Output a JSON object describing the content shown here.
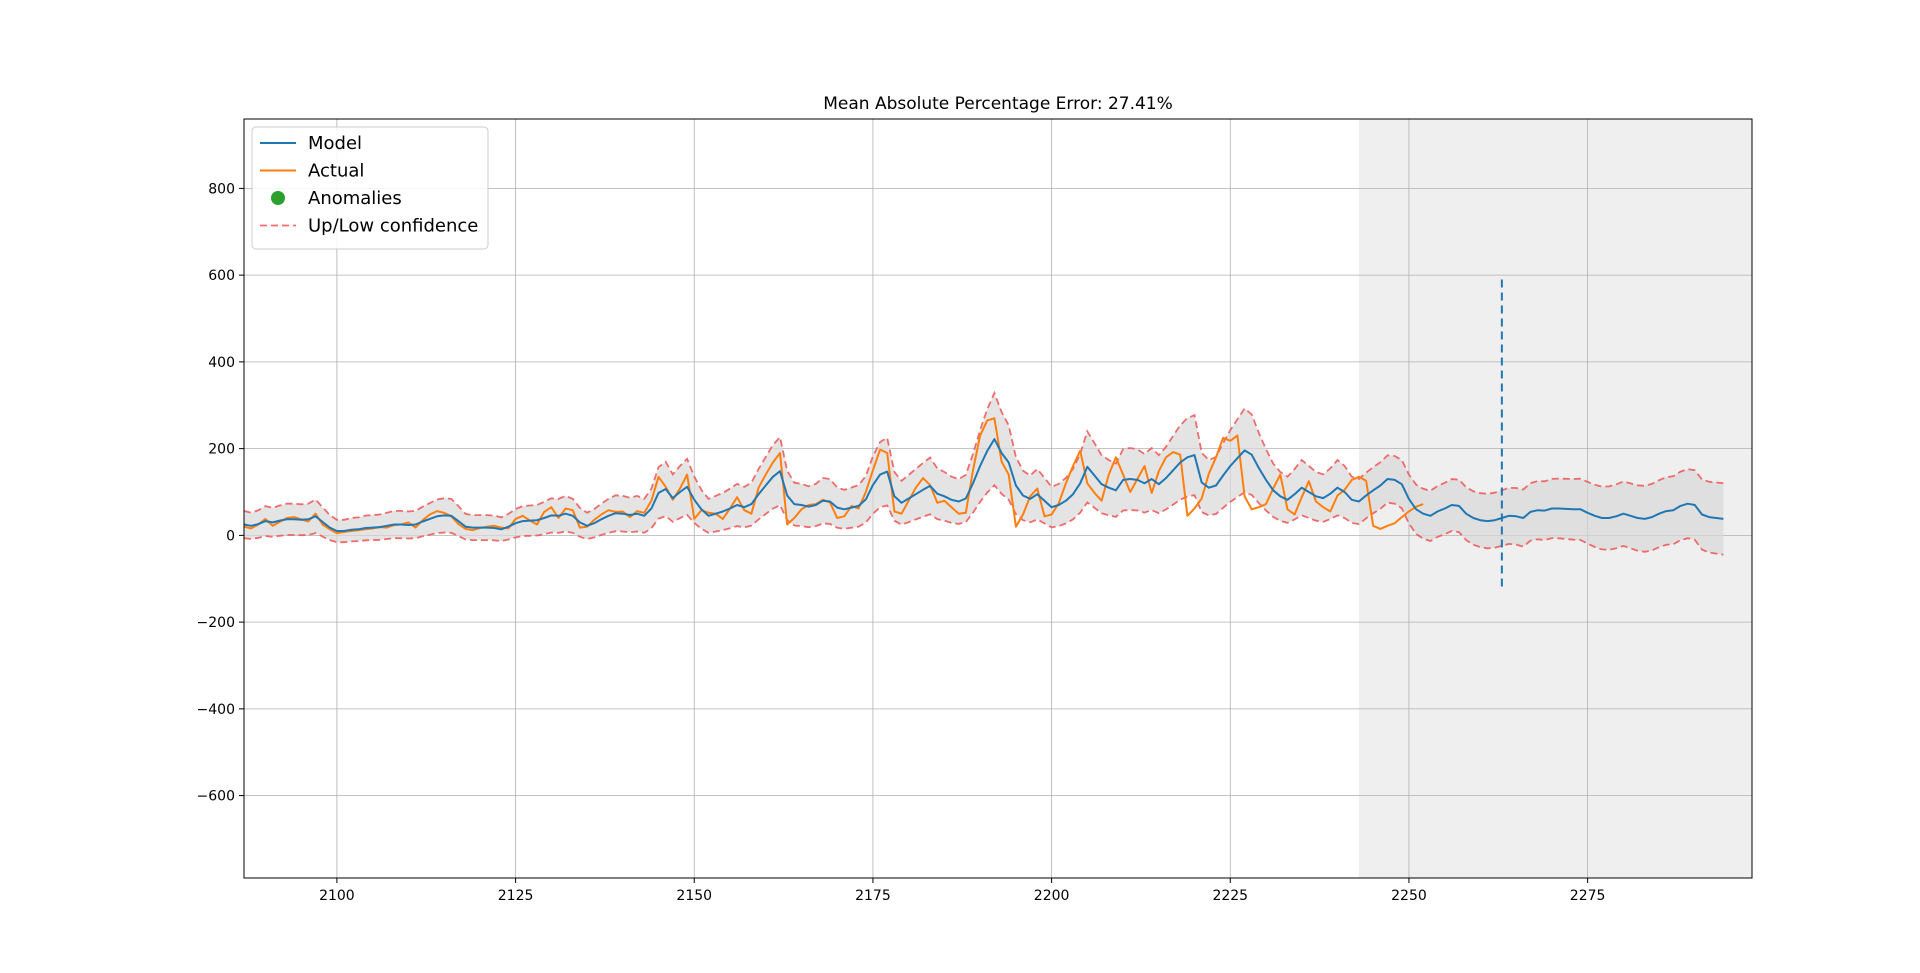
{
  "chart_data": {
    "type": "line",
    "title": "Mean Absolute Percentage Error: 27.41%",
    "xlim": [
      2087,
      2298
    ],
    "ylim": [
      -790,
      960
    ],
    "x_ticks": [
      2100,
      2125,
      2150,
      2175,
      2200,
      2225,
      2250,
      2275
    ],
    "y_ticks": [
      -600,
      -400,
      -200,
      0,
      200,
      400,
      600,
      800
    ],
    "grid": true,
    "legend_position": "top-left",
    "forecast_region": {
      "x_start": 2243,
      "x_end": 2298,
      "color": "#e8e8e8"
    },
    "vline": {
      "x": 2263,
      "y_min": -120,
      "y_max": 590,
      "color": "#1f77b4"
    },
    "x_start": 2087,
    "model": [
      25,
      22,
      26,
      33,
      30,
      34,
      37,
      37,
      36,
      37,
      44,
      31,
      18,
      10,
      10,
      13,
      14,
      17,
      18,
      19,
      22,
      25,
      25,
      24,
      25,
      32,
      38,
      44,
      46,
      45,
      33,
      20,
      18,
      18,
      18,
      17,
      14,
      20,
      28,
      33,
      34,
      35,
      40,
      46,
      45,
      50,
      45,
      30,
      22,
      28,
      37,
      45,
      51,
      50,
      47,
      50,
      45,
      62,
      98,
      107,
      86,
      100,
      112,
      82,
      60,
      45,
      50,
      55,
      62,
      70,
      65,
      72,
      95,
      115,
      135,
      148,
      92,
      72,
      70,
      66,
      70,
      80,
      78,
      64,
      60,
      64,
      68,
      83,
      116,
      140,
      147,
      90,
      75,
      85,
      95,
      105,
      114,
      96,
      90,
      82,
      78,
      85,
      120,
      160,
      195,
      222,
      190,
      168,
      115,
      92,
      84,
      95,
      80,
      65,
      70,
      80,
      95,
      120,
      158,
      138,
      118,
      110,
      104,
      128,
      130,
      128,
      120,
      130,
      118,
      132,
      150,
      168,
      180,
      185,
      122,
      110,
      115,
      138,
      160,
      178,
      196,
      186,
      155,
      128,
      104,
      90,
      82,
      95,
      110,
      100,
      90,
      86,
      96,
      110,
      100,
      82,
      78,
      92,
      104,
      115,
      130,
      128,
      118,
      84,
      60,
      50,
      45,
      55,
      62,
      70,
      68,
      50,
      40,
      35,
      33,
      35,
      40,
      45,
      44,
      40,
      54,
      58,
      57,
      62,
      62,
      61,
      60,
      60,
      52,
      45,
      40,
      40,
      44,
      50,
      45,
      40,
      38,
      42,
      50,
      56,
      58,
      68,
      73,
      70,
      48,
      42,
      40,
      38
    ],
    "actual": [
      20,
      16,
      25,
      38,
      22,
      31,
      40,
      42,
      37,
      32,
      50,
      25,
      14,
      5,
      8,
      10,
      12,
      14,
      16,
      19,
      18,
      24,
      25,
      30,
      18,
      35,
      48,
      56,
      52,
      44,
      26,
      15,
      12,
      17,
      20,
      22,
      18,
      16,
      38,
      45,
      34,
      25,
      54,
      65,
      40,
      62,
      58,
      18,
      20,
      36,
      48,
      58,
      54,
      55,
      42,
      56,
      52,
      80,
      135,
      112,
      82,
      108,
      140,
      38,
      58,
      52,
      50,
      38,
      62,
      88,
      58,
      50,
      110,
      140,
      168,
      190,
      25,
      40,
      60,
      70,
      72,
      82,
      76,
      40,
      44,
      68,
      62,
      100,
      150,
      198,
      190,
      55,
      50,
      80,
      110,
      132,
      116,
      75,
      80,
      65,
      50,
      52,
      150,
      230,
      265,
      270,
      170,
      140,
      20,
      48,
      90,
      108,
      44,
      48,
      74,
      120,
      160,
      195,
      120,
      98,
      80,
      140,
      180,
      140,
      100,
      130,
      160,
      98,
      148,
      180,
      192,
      186,
      45,
      62,
      85,
      142,
      180,
      225,
      218,
      230,
      90,
      60,
      65,
      72,
      108,
      140,
      60,
      48,
      88,
      125,
      78,
      65,
      55,
      92,
      105,
      128,
      135,
      126,
      22,
      15,
      22,
      28,
      42,
      55,
      66,
      72
    ]
  },
  "legend": {
    "items": [
      {
        "label": "Model",
        "color": "#1f77b4",
        "kind": "line"
      },
      {
        "label": "Actual",
        "color": "#ff7f0e",
        "kind": "line"
      },
      {
        "label": "Anomalies",
        "color": "#2ca02c",
        "kind": "marker"
      },
      {
        "label": "Up/Low confidence",
        "color": "#ff6b6b",
        "kind": "dashed"
      }
    ]
  },
  "confidence_color": "#ee5555",
  "band_fill_color": "#d9d9d9"
}
